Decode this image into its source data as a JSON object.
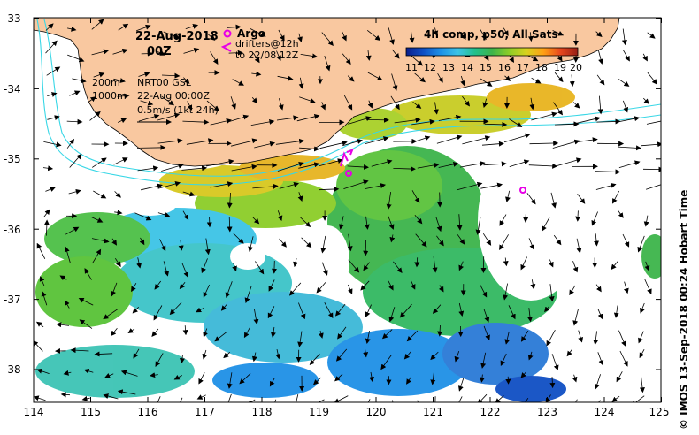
{
  "date": "22-Aug-2018",
  "time": "00Z",
  "legend": {
    "argo": "Argo",
    "drifters": "drifters@12h",
    "drifters_to": "to 22/08 12Z"
  },
  "contours": {
    "c200": "200m",
    "c1000": "1000m"
  },
  "product": {
    "line1": "NRT00 GSL",
    "line2": "22-Aug 00:00Z",
    "line3": "0.5m/s (1kt 24h)"
  },
  "colorbar": {
    "title": "4h comp, p50, All Sats",
    "ticks": [
      "11",
      "12",
      "13",
      "14",
      "15",
      "16",
      "17",
      "18",
      "19",
      "20"
    ],
    "colors": [
      "#0a1e8c",
      "#0f4fc4",
      "#1e90e6",
      "#3cc3e6",
      "#22c08c",
      "#3cb44a",
      "#8ccd28",
      "#d7d21e",
      "#ffa014",
      "#e6461e",
      "#961e14"
    ]
  },
  "credit": "© IMOS 13-Sep-2018 00:24 Hobart Time",
  "axes": {
    "lon_ticks": [
      "114",
      "115",
      "116",
      "117",
      "118",
      "119",
      "120",
      "121",
      "122",
      "123",
      "124",
      "125"
    ],
    "lat_ticks": [
      "-33",
      "-34",
      "-35",
      "-36",
      "-37",
      "-38"
    ]
  },
  "colors": {
    "land": "#f9c8a0",
    "contour": "#39d7e6",
    "argo": "#e600e6"
  }
}
